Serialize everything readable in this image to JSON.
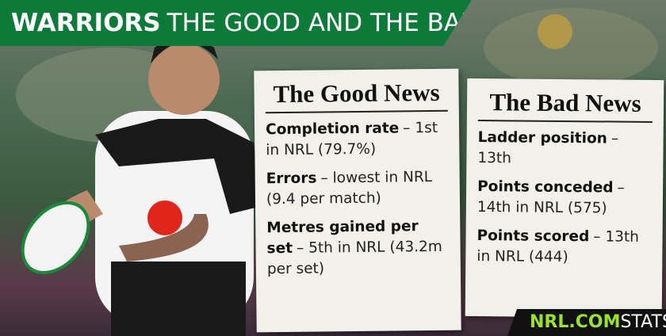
{
  "header": {
    "team": "WARRIORS",
    "title": "THE GOOD AND THE BAD"
  },
  "good_news": {
    "title": "The Good News",
    "items": [
      {
        "label": "Completion rate",
        "text": "– 1st in NRL (79.7%)"
      },
      {
        "label": "Errors",
        "text": "– lowest in NRL (9.4 per match)"
      },
      {
        "label": "Metres gained per set",
        "text": "– 5th in NRL (43.2m per set)"
      }
    ]
  },
  "bad_news": {
    "title": "The Bad News",
    "items": [
      {
        "label": "Ladder position",
        "text": "– 13th"
      },
      {
        "label": "Points conceded",
        "text": "– 14th in NRL (575)"
      },
      {
        "label": "Points scored",
        "text": "– 13th in NRL (444)"
      }
    ]
  },
  "footer": {
    "brand": "NRL.COM",
    "label": "STATS"
  }
}
